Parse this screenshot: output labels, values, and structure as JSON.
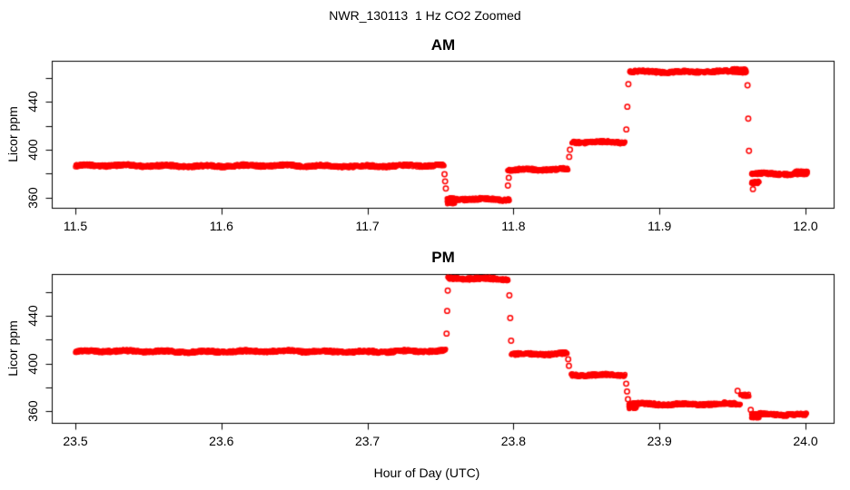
{
  "page": {
    "title": "NWR_130113  1 Hz CO2 Zoomed",
    "xlabel": "Hour of Day (UTC)"
  },
  "colors": {
    "data": "#ff0000",
    "axis": "#000000",
    "background": "#ffffff"
  },
  "chart_data": [
    {
      "type": "scatter",
      "panel": "AM",
      "title": "AM",
      "ylabel": "Licor ppm",
      "marker": "open-circle",
      "sample_rate_hz": 1,
      "xlim": [
        11.483,
        12.019
      ],
      "ylim": [
        352,
        474
      ],
      "xticks": [
        11.5,
        11.6,
        11.7,
        11.8,
        11.9,
        12.0
      ],
      "yticks_minor": [
        360,
        380,
        400,
        420,
        440,
        460
      ],
      "ytick_labels": [
        360,
        400,
        440
      ],
      "grid": false,
      "segments": [
        {
          "t0": 11.5,
          "t1": 11.7525,
          "v": 386.5
        },
        {
          "t0": 11.7545,
          "t1": 11.76,
          "v": 355.0
        },
        {
          "t0": 11.7545,
          "t1": 11.7975,
          "v": 358.5
        },
        {
          "t0": 11.796,
          "t1": 11.8375,
          "v": 383.5
        },
        {
          "t0": 11.84,
          "t1": 11.8765,
          "v": 406.0
        },
        {
          "t0": 11.8795,
          "t1": 11.9595,
          "v": 465.5
        },
        {
          "t0": 11.95,
          "t1": 11.9595,
          "v": 467.0
        },
        {
          "t0": 11.963,
          "t1": 11.9685,
          "v": 372.0
        },
        {
          "t0": 11.963,
          "t1": 12.0015,
          "v": 379.5
        },
        {
          "t0": 11.993,
          "t1": 12.0015,
          "v": 381.0
        }
      ],
      "transition_points": [
        {
          "t": 11.7528,
          "v": 379.5
        },
        {
          "t": 11.7532,
          "v": 373.5
        },
        {
          "t": 11.7537,
          "v": 367.5
        },
        {
          "t": 11.7962,
          "v": 370.0
        },
        {
          "t": 11.7968,
          "v": 376.5
        },
        {
          "t": 11.8382,
          "v": 394.0
        },
        {
          "t": 11.8387,
          "v": 400.0
        },
        {
          "t": 11.8773,
          "v": 417.0
        },
        {
          "t": 11.878,
          "v": 436.0
        },
        {
          "t": 11.8787,
          "v": 455.0
        },
        {
          "t": 11.9603,
          "v": 454.0
        },
        {
          "t": 11.9608,
          "v": 426.0
        },
        {
          "t": 11.9613,
          "v": 399.0
        },
        {
          "t": 11.964,
          "v": 367.0
        }
      ]
    },
    {
      "type": "scatter",
      "panel": "PM",
      "title": "PM",
      "ylabel": "Licor ppm",
      "marker": "open-circle",
      "sample_rate_hz": 1,
      "xlim": [
        23.483,
        24.019
      ],
      "ylim": [
        350,
        475
      ],
      "xticks": [
        23.5,
        23.6,
        23.7,
        23.8,
        23.9,
        24.0
      ],
      "yticks_minor": [
        360,
        380,
        400,
        420,
        440,
        460
      ],
      "ytick_labels": [
        360,
        400,
        440
      ],
      "grid": false,
      "segments": [
        {
          "t0": 23.5,
          "t1": 23.7537,
          "v": 410.0
        },
        {
          "t0": 23.755,
          "t1": 23.7965,
          "v": 471.0
        },
        {
          "t0": 23.7985,
          "t1": 23.837,
          "v": 408.0
        },
        {
          "t0": 23.8395,
          "t1": 23.8765,
          "v": 390.0
        },
        {
          "t0": 23.879,
          "t1": 23.8845,
          "v": 363.0
        },
        {
          "t0": 23.879,
          "t1": 23.9555,
          "v": 366.0
        },
        {
          "t0": 23.9555,
          "t1": 23.9615,
          "v": 373.5
        },
        {
          "t0": 23.963,
          "t1": 23.9685,
          "v": 354.5
        },
        {
          "t0": 23.963,
          "t1": 24.001,
          "v": 357.0
        }
      ],
      "transition_points": [
        {
          "t": 23.7542,
          "v": 425.0
        },
        {
          "t": 23.7546,
          "v": 444.0
        },
        {
          "t": 23.755,
          "v": 461.0
        },
        {
          "t": 23.7972,
          "v": 457.0
        },
        {
          "t": 23.7978,
          "v": 438.0
        },
        {
          "t": 23.7984,
          "v": 419.0
        },
        {
          "t": 23.8375,
          "v": 403.5
        },
        {
          "t": 23.838,
          "v": 398.0
        },
        {
          "t": 23.8772,
          "v": 383.0
        },
        {
          "t": 23.8778,
          "v": 376.5
        },
        {
          "t": 23.8784,
          "v": 370.0
        },
        {
          "t": 23.9535,
          "v": 377.0
        },
        {
          "t": 23.9625,
          "v": 361.0
        }
      ]
    }
  ]
}
